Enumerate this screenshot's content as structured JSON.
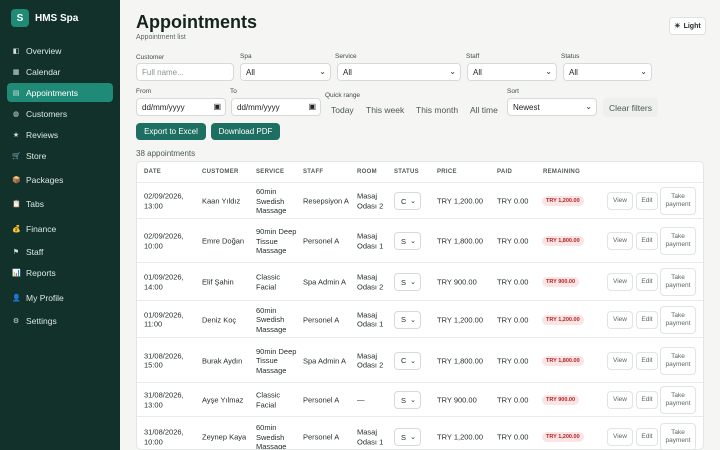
{
  "app": {
    "logo_letter": "S",
    "name": "HMS Spa"
  },
  "sidebar": {
    "items": [
      {
        "label": "Overview",
        "icon": "overview-icon",
        "glyph": "◧"
      },
      {
        "label": "Calendar",
        "icon": "calendar-icon",
        "glyph": "▦"
      },
      {
        "label": "Appointments",
        "icon": "appointments-icon",
        "glyph": "▤",
        "active": true
      },
      {
        "label": "Customers",
        "icon": "customers-icon",
        "glyph": "◍"
      },
      {
        "label": "Reviews",
        "icon": "star-icon",
        "glyph": "★"
      },
      {
        "label": "Store",
        "icon": "store-icon",
        "glyph": "🛒"
      },
      {
        "label": "Packages",
        "icon": "package-icon",
        "glyph": "📦"
      },
      {
        "label": "Tabs",
        "icon": "tabs-icon",
        "glyph": "📋"
      },
      {
        "label": "Finance",
        "icon": "finance-icon",
        "glyph": "💰"
      },
      {
        "label": "Staff",
        "icon": "staff-icon",
        "glyph": "⚑"
      },
      {
        "label": "Reports",
        "icon": "reports-icon",
        "glyph": "📊"
      },
      {
        "label": "My Profile",
        "icon": "profile-icon",
        "glyph": "👤"
      },
      {
        "label": "Settings",
        "icon": "settings-icon",
        "glyph": "⚙"
      }
    ]
  },
  "header": {
    "title": "Appointments",
    "subtitle": "Appointment list",
    "theme_icon": "☀",
    "theme_label": "Light"
  },
  "filters": {
    "customer": {
      "label": "Customer",
      "placeholder": "Full name..."
    },
    "spa": {
      "label": "Spa",
      "value": "All"
    },
    "service": {
      "label": "Service",
      "value": "All"
    },
    "staff": {
      "label": "Staff",
      "value": "All"
    },
    "status": {
      "label": "Status",
      "value": "All"
    },
    "from": {
      "label": "From",
      "value": "dd/mm/yyyy"
    },
    "to": {
      "label": "To",
      "value": "dd/mm/yyyy"
    },
    "quick_range": {
      "label": "Quick range",
      "options": [
        "Today",
        "This week",
        "This month",
        "All time"
      ]
    },
    "sort": {
      "label": "Sort",
      "value": "Newest"
    },
    "clear_label": "Clear filters"
  },
  "actions": {
    "export_excel": "Export to Excel",
    "download_pdf": "Download PDF"
  },
  "summary": {
    "count_text": "38 appointments"
  },
  "table": {
    "columns": [
      "DATE",
      "CUSTOMER",
      "SERVICE",
      "STAFF",
      "ROOM",
      "STATUS",
      "PRICE",
      "PAID",
      "REMAINING"
    ],
    "view_label": "View",
    "edit_label": "Edit",
    "pay_label": "Take payment",
    "rows": [
      {
        "date": "02/09/2026, 13:00",
        "customer": "Kaan Yıldız",
        "service": "60min Swedish Massage",
        "staff": "Resepsiyon A",
        "room": "Masaj Odası 2",
        "status": "C",
        "price": "TRY 1,200.00",
        "paid": "TRY 0.00",
        "remaining": "TRY 1,200.00"
      },
      {
        "date": "02/09/2026, 10:00",
        "customer": "Emre Doğan",
        "service": "90min Deep Tissue Massage",
        "staff": "Personel A",
        "room": "Masaj Odası 1",
        "status": "S",
        "price": "TRY 1,800.00",
        "paid": "TRY 0.00",
        "remaining": "TRY 1,800.00"
      },
      {
        "date": "01/09/2026, 14:00",
        "customer": "Elif Şahin",
        "service": "Classic Facial",
        "staff": "Spa Admin A",
        "room": "Masaj Odası 2",
        "status": "S",
        "price": "TRY 900.00",
        "paid": "TRY 0.00",
        "remaining": "TRY 900.00"
      },
      {
        "date": "01/09/2026, 11:00",
        "customer": "Deniz Koç",
        "service": "60min Swedish Massage",
        "staff": "Personel A",
        "room": "Masaj Odası 1",
        "status": "S",
        "price": "TRY 1,200.00",
        "paid": "TRY 0.00",
        "remaining": "TRY 1,200.00"
      },
      {
        "date": "31/08/2026, 15:00",
        "customer": "Burak Aydın",
        "service": "90min Deep Tissue Massage",
        "staff": "Spa Admin A",
        "room": "Masaj Odası 2",
        "status": "C",
        "price": "TRY 1,800.00",
        "paid": "TRY 0.00",
        "remaining": "TRY 1,800.00"
      },
      {
        "date": "31/08/2026, 13:00",
        "customer": "Ayşe Yılmaz",
        "service": "Classic Facial",
        "staff": "Personel A",
        "room": "—",
        "status": "S",
        "price": "TRY 900.00",
        "paid": "TRY 0.00",
        "remaining": "TRY 900.00"
      },
      {
        "date": "31/08/2026, 10:00",
        "customer": "Zeynep Kaya",
        "service": "60min Swedish Massage",
        "staff": "Personel A",
        "room": "Masaj Odası 1",
        "status": "S",
        "price": "TRY 1,200.00",
        "paid": "TRY 0.00",
        "remaining": "TRY 1,200.00"
      }
    ]
  },
  "colors": {
    "sidebar_bg": "#13312b",
    "accent": "#1f8a76",
    "button": "#1d6f62",
    "remaining_badge_bg": "#fbe4e4",
    "remaining_badge_text": "#b42323"
  }
}
